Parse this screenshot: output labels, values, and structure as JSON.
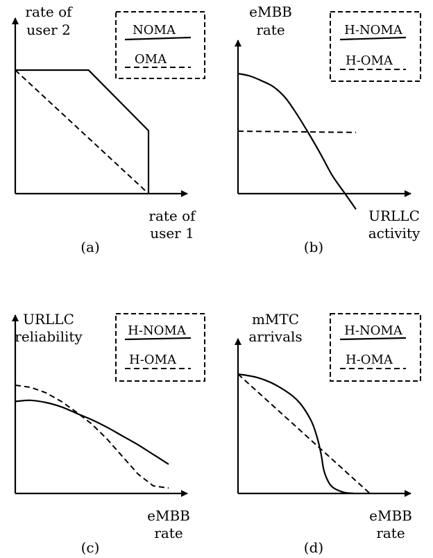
{
  "chart_data": [
    {
      "type": "line",
      "panel_label": "(a)",
      "ylabel_lines": [
        "rate of",
        "user 2"
      ],
      "xlabel_lines": [
        "rate of",
        "user 1"
      ],
      "legend": [
        {
          "label": "NOMA",
          "style": "solid"
        },
        {
          "label": "OMA",
          "style": "dashed"
        }
      ],
      "series": [
        {
          "name": "NOMA",
          "style": "solid",
          "x": [
            0,
            0.55,
            1.0,
            1.0
          ],
          "y": [
            1.0,
            1.0,
            0.51,
            0.0
          ]
        },
        {
          "name": "OMA",
          "style": "dashed",
          "x": [
            0,
            1.0
          ],
          "y": [
            1.0,
            0.0
          ]
        }
      ]
    },
    {
      "type": "line",
      "panel_label": "(b)",
      "ylabel_lines": [
        "eMBB",
        "rate"
      ],
      "xlabel_lines": [
        "URLLC",
        "activity"
      ],
      "legend": [
        {
          "label": "H-NOMA",
          "style": "solid"
        },
        {
          "label": "H-OMA",
          "style": "dashed"
        }
      ],
      "series": [
        {
          "name": "H-NOMA",
          "style": "solid",
          "x": [
            0,
            0.1,
            0.2,
            0.3,
            0.4,
            0.5,
            0.6,
            0.7,
            0.8,
            0.9,
            1.0
          ],
          "y": [
            1.0,
            0.98,
            0.94,
            0.89,
            0.8,
            0.66,
            0.5,
            0.33,
            0.15,
            0.01,
            -0.13
          ]
        },
        {
          "name": "H-OMA",
          "style": "dashed",
          "x": [
            0,
            1.0
          ],
          "y": [
            0.52,
            0.51
          ]
        }
      ]
    },
    {
      "type": "line",
      "panel_label": "(c)",
      "ylabel_lines": [
        "URLLC",
        "reliability"
      ],
      "xlabel_lines": [
        "eMBB",
        "rate"
      ],
      "legend": [
        {
          "label": "H-NOMA",
          "style": "solid"
        },
        {
          "label": "H-OMA",
          "style": "dashed"
        }
      ],
      "series": [
        {
          "name": "H-NOMA",
          "style": "solid",
          "x": [
            0,
            0.1,
            0.2,
            0.3,
            0.4,
            0.5,
            0.6,
            0.7,
            0.8,
            0.9,
            1.0
          ],
          "y": [
            0.85,
            0.86,
            0.84,
            0.8,
            0.74,
            0.68,
            0.61,
            0.53,
            0.45,
            0.36,
            0.27
          ]
        },
        {
          "name": "H-OMA",
          "style": "dashed",
          "x": [
            0,
            0.1,
            0.2,
            0.3,
            0.4,
            0.5,
            0.6,
            0.7,
            0.8,
            0.9,
            1.0
          ],
          "y": [
            1.0,
            0.98,
            0.93,
            0.85,
            0.75,
            0.64,
            0.5,
            0.34,
            0.18,
            0.07,
            0.05
          ]
        }
      ]
    },
    {
      "type": "line",
      "panel_label": "(d)",
      "ylabel_lines": [
        "mMTC",
        "arrivals"
      ],
      "xlabel_lines": [
        "eMBB",
        "rate"
      ],
      "legend": [
        {
          "label": "H-NOMA",
          "style": "solid"
        },
        {
          "label": "H-OMA",
          "style": "dashed"
        }
      ],
      "series": [
        {
          "name": "H-NOMA",
          "style": "solid",
          "x": [
            0,
            0.15,
            0.3,
            0.45,
            0.55,
            0.6,
            0.63,
            0.65,
            0.68,
            0.72,
            0.8,
            0.88
          ],
          "y": [
            1.0,
            0.97,
            0.9,
            0.78,
            0.62,
            0.47,
            0.33,
            0.2,
            0.11,
            0.05,
            0.01,
            0.0
          ]
        },
        {
          "name": "H-OMA",
          "style": "dashed",
          "x": [
            0,
            1.0
          ],
          "y": [
            1.0,
            0.0
          ]
        }
      ]
    }
  ]
}
